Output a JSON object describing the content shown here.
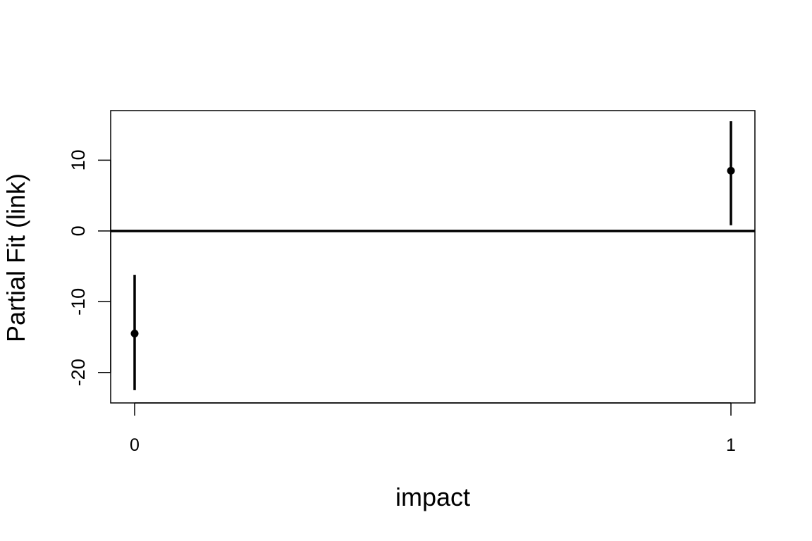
{
  "chart_data": {
    "type": "scatter",
    "xlabel": "impact",
    "ylabel": "Partial Fit (link)",
    "categories": [
      "0",
      "1"
    ],
    "points": [
      {
        "x": "0",
        "y": -14.5,
        "lower": -22.5,
        "upper": -6.2
      },
      {
        "x": "1",
        "y": 8.5,
        "lower": 0.8,
        "upper": 15.5
      }
    ],
    "reference_line_y": 0,
    "yticks": [
      -20,
      -10,
      0,
      10
    ],
    "ylim": [
      -24.3,
      17
    ],
    "grid": false,
    "legend": "none"
  }
}
